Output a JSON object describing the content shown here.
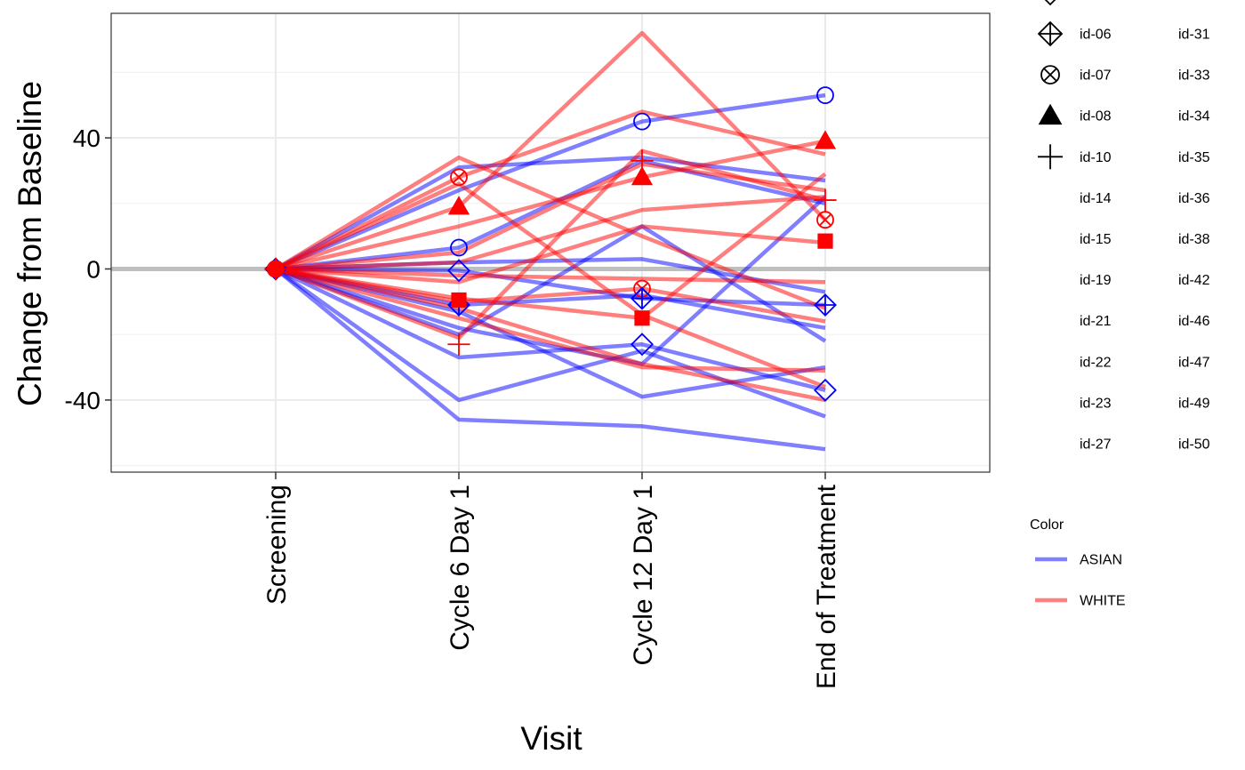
{
  "chart_data": {
    "type": "line",
    "xlabel": "Visit",
    "ylabel": "Change from Baseline",
    "categories": [
      "Screening",
      "Cycle 6 Day 1",
      "Cycle 12 Day 1",
      "End of Treatment"
    ],
    "y_ticks": [
      -40,
      0,
      40
    ],
    "ylim": [
      -62,
      78
    ],
    "reference_line_y": 0,
    "grid": true,
    "colors": {
      "ASIAN": "#0000ff",
      "WHITE": "#ff0000",
      "reference_line": "#bebebe"
    },
    "series": [
      {
        "group": "ASIAN",
        "values": [
          0,
          31,
          34,
          27
        ]
      },
      {
        "group": "ASIAN",
        "values": [
          0,
          24,
          45,
          53
        ]
      },
      {
        "group": "ASIAN",
        "values": [
          0,
          6.5,
          33,
          20
        ]
      },
      {
        "group": "ASIAN",
        "values": [
          0,
          2,
          3,
          -7
        ]
      },
      {
        "group": "ASIAN",
        "values": [
          0,
          -0.5,
          -9,
          -11
        ]
      },
      {
        "group": "ASIAN",
        "values": [
          0,
          -11,
          -8,
          -18
        ]
      },
      {
        "group": "ASIAN",
        "values": [
          0,
          -20,
          13,
          -22
        ]
      },
      {
        "group": "ASIAN",
        "values": [
          0,
          -27,
          -23,
          -37
        ]
      },
      {
        "group": "ASIAN",
        "values": [
          0,
          -40,
          -25,
          -45
        ]
      },
      {
        "group": "ASIAN",
        "values": [
          0,
          -46,
          -48,
          -55
        ]
      },
      {
        "group": "ASIAN",
        "values": [
          0,
          -13,
          -39,
          -30
        ]
      },
      {
        "group": "ASIAN",
        "values": [
          0,
          -18,
          -29,
          22
        ]
      },
      {
        "group": "WHITE",
        "values": [
          0,
          34,
          10,
          -12
        ]
      },
      {
        "group": "WHITE",
        "values": [
          0,
          28,
          48,
          35
        ]
      },
      {
        "group": "WHITE",
        "values": [
          0,
          19,
          72,
          15
        ]
      },
      {
        "group": "WHITE",
        "values": [
          0,
          13,
          28,
          39
        ]
      },
      {
        "group": "WHITE",
        "values": [
          0,
          26,
          -14,
          -36
        ]
      },
      {
        "group": "WHITE",
        "values": [
          0,
          5,
          32,
          24
        ]
      },
      {
        "group": "WHITE",
        "values": [
          0,
          2,
          18,
          22
        ]
      },
      {
        "group": "WHITE",
        "values": [
          0,
          -2,
          -3,
          -4
        ]
      },
      {
        "group": "WHITE",
        "values": [
          0,
          -4,
          13,
          8
        ]
      },
      {
        "group": "WHITE",
        "values": [
          0,
          -9,
          -15,
          29
        ]
      },
      {
        "group": "WHITE",
        "values": [
          0,
          -10,
          -6,
          -16
        ]
      },
      {
        "group": "WHITE",
        "values": [
          0,
          -21,
          36,
          21
        ]
      },
      {
        "group": "WHITE",
        "values": [
          0,
          -15,
          -30,
          -31
        ]
      },
      {
        "group": "WHITE",
        "values": [
          0,
          -12,
          -29,
          -40
        ]
      }
    ],
    "markers": [
      {
        "visit": 0,
        "y": 0,
        "shape": "diamond",
        "color": "#0000ff"
      },
      {
        "visit": 0,
        "y": 0,
        "shape": "circle-x",
        "color": "#ff0000"
      },
      {
        "visit": 0,
        "y": 0,
        "shape": "circle",
        "color": "#0000ff"
      },
      {
        "visit": 0,
        "y": 0,
        "shape": "plus",
        "color": "#ff0000"
      },
      {
        "visit": 0,
        "y": 0,
        "shape": "circle-filled",
        "color": "#ff0000"
      },
      {
        "visit": 1,
        "y": 28,
        "shape": "circle-x",
        "color": "#ff0000"
      },
      {
        "visit": 1,
        "y": 19,
        "shape": "triangle",
        "color": "#ff0000"
      },
      {
        "visit": 1,
        "y": 6.5,
        "shape": "circle",
        "color": "#0000ff"
      },
      {
        "visit": 1,
        "y": -0.5,
        "shape": "diamond",
        "color": "#0000ff"
      },
      {
        "visit": 1,
        "y": -11,
        "shape": "diamond-plus",
        "color": "#0000ff"
      },
      {
        "visit": 1,
        "y": -9.5,
        "shape": "square",
        "color": "#ff0000"
      },
      {
        "visit": 1,
        "y": -23,
        "shape": "plus",
        "color": "#ff0000"
      },
      {
        "visit": 2,
        "y": 45,
        "shape": "circle",
        "color": "#0000ff"
      },
      {
        "visit": 2,
        "y": 33,
        "shape": "plus",
        "color": "#ff0000"
      },
      {
        "visit": 2,
        "y": 28,
        "shape": "triangle",
        "color": "#ff0000"
      },
      {
        "visit": 2,
        "y": -6,
        "shape": "circle-x",
        "color": "#ff0000"
      },
      {
        "visit": 2,
        "y": -9,
        "shape": "diamond-plus",
        "color": "#0000ff"
      },
      {
        "visit": 2,
        "y": -15,
        "shape": "square",
        "color": "#ff0000"
      },
      {
        "visit": 2,
        "y": -23,
        "shape": "diamond",
        "color": "#0000ff"
      },
      {
        "visit": 3,
        "y": 53,
        "shape": "circle",
        "color": "#0000ff"
      },
      {
        "visit": 3,
        "y": 39,
        "shape": "triangle",
        "color": "#ff0000"
      },
      {
        "visit": 3,
        "y": 21,
        "shape": "plus",
        "color": "#ff0000"
      },
      {
        "visit": 3,
        "y": 15,
        "shape": "circle-x",
        "color": "#ff0000"
      },
      {
        "visit": 3,
        "y": 8.5,
        "shape": "square",
        "color": "#ff0000"
      },
      {
        "visit": 3,
        "y": -11,
        "shape": "diamond-plus",
        "color": "#0000ff"
      },
      {
        "visit": 3,
        "y": -37,
        "shape": "diamond",
        "color": "#0000ff"
      }
    ],
    "legend_shape": {
      "col1": [
        {
          "label": "id-06",
          "shape": "diamond-plus"
        },
        {
          "label": "id-07",
          "shape": "circle-x"
        },
        {
          "label": "id-08",
          "shape": "triangle"
        },
        {
          "label": "id-10",
          "shape": "plus"
        },
        {
          "label": "id-14",
          "shape": ""
        },
        {
          "label": "id-15",
          "shape": ""
        },
        {
          "label": "id-19",
          "shape": ""
        },
        {
          "label": "id-21",
          "shape": ""
        },
        {
          "label": "id-22",
          "shape": ""
        },
        {
          "label": "id-23",
          "shape": ""
        },
        {
          "label": "id-27",
          "shape": ""
        }
      ],
      "col2": [
        "id-31",
        "id-33",
        "id-34",
        "id-35",
        "id-36",
        "id-38",
        "id-42",
        "id-46",
        "id-47",
        "id-49",
        "id-50"
      ]
    },
    "legend_color": {
      "title": "Color",
      "entries": [
        {
          "label": "ASIAN",
          "color": "#0000ff"
        },
        {
          "label": "WHITE",
          "color": "#ff0000"
        }
      ]
    }
  }
}
